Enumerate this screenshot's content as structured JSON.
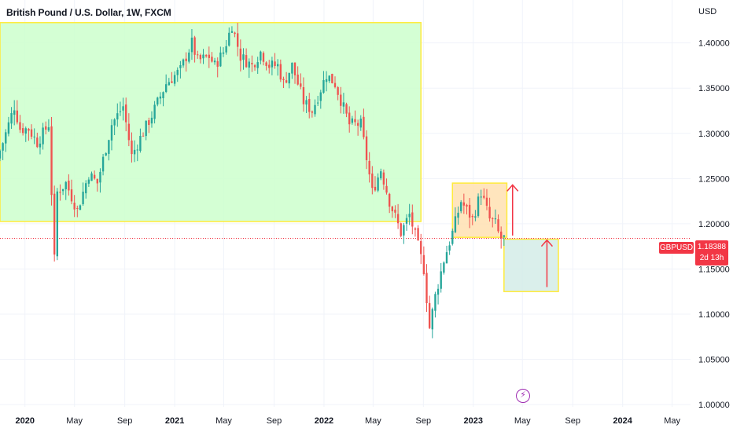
{
  "header": {
    "symbol_title": "British Pound / U.S. Dollar, 1W, FXCM",
    "currency": "USD"
  },
  "price_scale": {
    "tag_symbol": "GBPUSD",
    "last_price": "1.18388",
    "countdown": "2d 13h"
  },
  "colors": {
    "up": "#26a69a",
    "down": "#ef5350",
    "zone_green": "#ccffcc",
    "zone_yellow_border": "#ffeb3b",
    "zone_orange": "#ffe0b2",
    "zone_teal": "#d3ece8",
    "arrow": "#f23645",
    "grid": "#f0f3fa",
    "price_line": "#f23645",
    "events_icon": "#9c27b0"
  },
  "icons": {
    "events_marker": "flash-icon"
  },
  "chart_data": {
    "type": "candlestick",
    "title": "British Pound / U.S. Dollar, 1W, FXCM",
    "y_axis_label": "USD",
    "y_ticks": [
      "1.00000",
      "1.05000",
      "1.10000",
      "1.15000",
      "1.20000",
      "1.25000",
      "1.30000",
      "1.35000",
      "1.40000"
    ],
    "x_ticks": [
      "2020",
      "May",
      "Sep",
      "2021",
      "May",
      "Sep",
      "2022",
      "May",
      "Sep",
      "2023",
      "May",
      "Sep",
      "2024",
      "May"
    ],
    "x_tick_dates": [
      "2020-01-01",
      "2020-05-01",
      "2020-09-01",
      "2021-01-01",
      "2021-05-01",
      "2021-09-01",
      "2022-01-01",
      "2022-05-01",
      "2022-09-01",
      "2023-01-01",
      "2023-05-01",
      "2023-09-01",
      "2024-01-01",
      "2024-05-01"
    ],
    "ylim": [
      0.9975,
      1.4475
    ],
    "xlim": [
      "2019-11-01",
      "2024-06-15"
    ],
    "last_price": 1.18388,
    "price_path": [
      [
        "2019-11-01",
        1.272
      ],
      [
        "2019-11-15",
        1.29
      ],
      [
        "2019-12-13",
        1.33
      ],
      [
        "2019-12-27",
        1.305
      ],
      [
        "2020-01-17",
        1.305
      ],
      [
        "2020-02-07",
        1.29
      ],
      [
        "2020-02-21",
        1.3
      ],
      [
        "2020-03-06",
        1.31
      ],
      [
        "2020-03-20",
        1.16
      ],
      [
        "2020-03-27",
        1.235
      ],
      [
        "2020-04-17",
        1.245
      ],
      [
        "2020-05-15",
        1.215
      ],
      [
        "2020-06-12",
        1.255
      ],
      [
        "2020-07-03",
        1.245
      ],
      [
        "2020-08-07",
        1.31
      ],
      [
        "2020-09-04",
        1.33
      ],
      [
        "2020-09-25",
        1.275
      ],
      [
        "2020-10-16",
        1.295
      ],
      [
        "2020-11-13",
        1.32
      ],
      [
        "2020-12-18",
        1.355
      ],
      [
        "2021-01-22",
        1.37
      ],
      [
        "2021-02-19",
        1.4
      ],
      [
        "2021-03-05",
        1.38
      ],
      [
        "2021-04-02",
        1.385
      ],
      [
        "2021-04-16",
        1.375
      ],
      [
        "2021-05-07",
        1.39
      ],
      [
        "2021-05-28",
        1.42
      ],
      [
        "2021-06-18",
        1.385
      ],
      [
        "2021-07-16",
        1.375
      ],
      [
        "2021-08-06",
        1.39
      ],
      [
        "2021-08-27",
        1.375
      ],
      [
        "2021-09-17",
        1.375
      ],
      [
        "2021-10-01",
        1.355
      ],
      [
        "2021-10-22",
        1.375
      ],
      [
        "2021-11-19",
        1.335
      ],
      [
        "2021-12-10",
        1.325
      ],
      [
        "2022-01-14",
        1.365
      ],
      [
        "2022-02-04",
        1.355
      ],
      [
        "2022-03-11",
        1.31
      ],
      [
        "2022-04-08",
        1.31
      ],
      [
        "2022-05-06",
        1.235
      ],
      [
        "2022-05-27",
        1.26
      ],
      [
        "2022-06-17",
        1.225
      ],
      [
        "2022-07-15",
        1.19
      ],
      [
        "2022-08-05",
        1.21
      ],
      [
        "2022-08-26",
        1.175
      ],
      [
        "2022-09-09",
        1.15
      ],
      [
        "2022-09-23",
        1.085
      ],
      [
        "2022-10-07",
        1.12
      ],
      [
        "2022-10-28",
        1.16
      ],
      [
        "2022-11-18",
        1.19
      ],
      [
        "2022-12-09",
        1.225
      ],
      [
        "2023-01-06",
        1.205
      ],
      [
        "2023-01-27",
        1.235
      ],
      [
        "2023-02-17",
        1.205
      ],
      [
        "2023-03-03",
        1.2
      ],
      [
        "2023-03-10",
        1.19
      ],
      [
        "2023-03-17",
        1.184
      ]
    ],
    "zones": [
      {
        "name": "green-zone",
        "x0": "2019-11-01",
        "x1": "2022-08-26",
        "y0": 1.2025,
        "y1": 1.4225,
        "fill": "#ccffcc"
      },
      {
        "name": "orange-zone",
        "x0": "2022-11-11",
        "x1": "2023-03-24",
        "y0": 1.185,
        "y1": 1.245,
        "fill": "#ffe0b2"
      },
      {
        "name": "teal-zone",
        "x0": "2023-03-17",
        "x1": "2023-07-28",
        "y0": 1.125,
        "y1": 1.183,
        "fill": "#d3ece8"
      }
    ],
    "arrows": [
      {
        "name": "arrow-up-1",
        "x": "2023-04-07",
        "y0": 1.187,
        "y1": 1.243
      },
      {
        "name": "arrow-up-2",
        "x": "2023-06-30",
        "y0": 1.13,
        "y1": 1.182
      }
    ]
  }
}
